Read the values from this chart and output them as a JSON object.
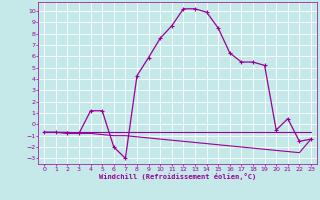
{
  "xlabel": "Windchill (Refroidissement éolien,°C)",
  "bg_color": "#c5e8e8",
  "grid_color": "#b0d0d0",
  "line_color": "#990099",
  "xlim": [
    -0.5,
    23.5
  ],
  "ylim": [
    -3.5,
    10.8
  ],
  "xtick_vals": [
    0,
    1,
    2,
    3,
    4,
    5,
    6,
    7,
    8,
    9,
    10,
    11,
    12,
    13,
    14,
    15,
    16,
    17,
    18,
    19,
    20,
    21,
    22,
    23
  ],
  "ytick_vals": [
    -3,
    -2,
    -1,
    0,
    1,
    2,
    3,
    4,
    5,
    6,
    7,
    8,
    9,
    10
  ],
  "main_x": [
    0,
    1,
    2,
    3,
    4,
    5,
    6,
    7,
    8,
    9,
    10,
    11,
    12,
    13,
    14,
    15,
    16,
    17,
    18,
    19,
    20,
    21,
    22,
    23
  ],
  "main_y": [
    -0.7,
    -0.7,
    -0.8,
    -0.8,
    1.2,
    1.2,
    -2.0,
    -3.0,
    4.3,
    5.9,
    7.6,
    8.7,
    10.2,
    10.2,
    9.9,
    8.5,
    6.3,
    5.5,
    5.5,
    5.2,
    -0.5,
    0.5,
    -1.5,
    -1.3
  ],
  "flat1_x": [
    0,
    1,
    2,
    3,
    4,
    5,
    6,
    7,
    8,
    9,
    10,
    11,
    12,
    13,
    14,
    15,
    16,
    17,
    18,
    19,
    20,
    21,
    22,
    23
  ],
  "flat1_y": [
    -0.7,
    -0.7,
    -0.7,
    -0.7,
    -0.7,
    -0.7,
    -0.7,
    -0.7,
    -0.7,
    -0.7,
    -0.7,
    -0.7,
    -0.7,
    -0.7,
    -0.7,
    -0.7,
    -0.7,
    -0.7,
    -0.7,
    -0.7,
    -0.7,
    -0.7,
    -0.7,
    -0.7
  ],
  "flat2_x": [
    0,
    1,
    2,
    3,
    4,
    5,
    6,
    7,
    8,
    9,
    10,
    11,
    12,
    13,
    14,
    15,
    16,
    17,
    18,
    19,
    20,
    21,
    22,
    23
  ],
  "flat2_y": [
    -0.7,
    -0.7,
    -0.7,
    -0.8,
    -0.8,
    -0.9,
    -1.0,
    -1.0,
    -1.1,
    -1.2,
    -1.3,
    -1.4,
    -1.5,
    -1.6,
    -1.7,
    -1.8,
    -1.9,
    -2.0,
    -2.1,
    -2.2,
    -2.3,
    -2.4,
    -2.5,
    -1.3
  ]
}
